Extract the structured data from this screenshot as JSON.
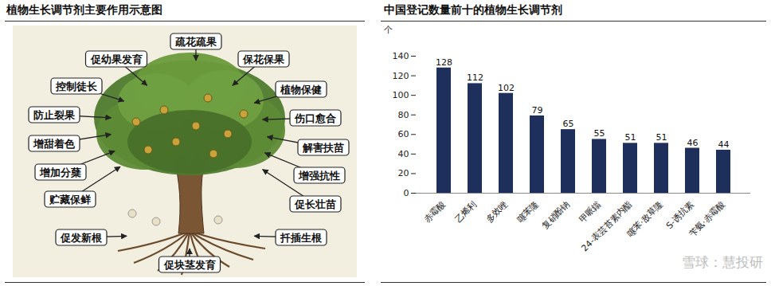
{
  "diagram": {
    "title": "植物生长调节剂主要作用示意图",
    "labels": [
      "疏花疏果",
      "促幼果发育",
      "保花保果",
      "控制徒长",
      "植物保健",
      "防止裂果",
      "伤口愈合",
      "增甜着色",
      "解害扶苗",
      "增加分蘖",
      "增强抗性",
      "贮藏保鲜",
      "促长壮苗",
      "促发新根",
      "扦插生根",
      "促块茎发育"
    ]
  },
  "chart_data": {
    "type": "bar",
    "title": "中国登记数量前十的植物生长调节剂",
    "y_label": "个",
    "categories": [
      "赤霉酸",
      "乙烯利",
      "多效唑",
      "噻苯隆",
      "复硝酚钠",
      "甲哌鎓",
      "24-表芸苔素内酯",
      "噻苯·敌草隆",
      "S-诱抗素",
      "苄氨·赤霉酸"
    ],
    "values": [
      128,
      112,
      102,
      79,
      65,
      55,
      51,
      51,
      46,
      44
    ],
    "color": "#1f2f5c",
    "ylim": [
      0,
      140
    ],
    "yticks": [
      0,
      20,
      40,
      60,
      80,
      100,
      120,
      140
    ],
    "grid": false,
    "data_labels": true
  },
  "watermark": "雪球：慧投研"
}
